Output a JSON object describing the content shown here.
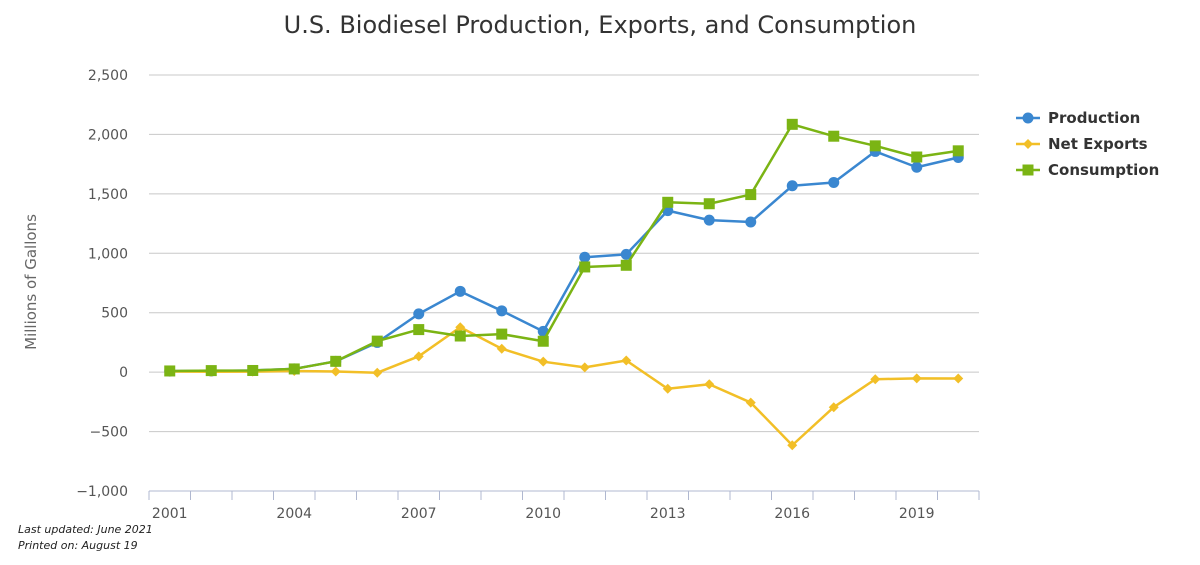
{
  "chart_data": {
    "type": "line",
    "title": "U.S. Biodiesel Production, Exports, and Consumption",
    "ylabel": "Millions of Gallons",
    "xlabel": "",
    "x": [
      2001,
      2002,
      2003,
      2004,
      2005,
      2006,
      2007,
      2008,
      2009,
      2010,
      2011,
      2012,
      2013,
      2014,
      2015,
      2016,
      2017,
      2018,
      2019,
      2020
    ],
    "x_ticks": [
      "2001",
      "2004",
      "2007",
      "2010",
      "2013",
      "2016",
      "2019"
    ],
    "ylim": [
      -1000,
      2500
    ],
    "y_ticks": [
      "−1,000",
      "−500",
      "0",
      "500",
      "1,000",
      "1,500",
      "2,000",
      "2,500"
    ],
    "y_tick_values": [
      -1000,
      -500,
      0,
      500,
      1000,
      1500,
      2000,
      2500
    ],
    "grid": true,
    "legend_position": "right",
    "series": [
      {
        "name": "Production",
        "color": "#3a87d0",
        "marker": "circle",
        "values": [
          9,
          10,
          14,
          28,
          91,
          250,
          490,
          680,
          516,
          343,
          967,
          991,
          1359,
          1279,
          1263,
          1568,
          1596,
          1857,
          1724,
          1806
        ]
      },
      {
        "name": "Net Exports",
        "color": "#f2bf27",
        "marker": "diamond",
        "values": [
          5,
          3,
          4,
          10,
          5,
          -5,
          133,
          378,
          197,
          88,
          40,
          98,
          -140,
          -102,
          -256,
          -615,
          -295,
          -60,
          -52,
          -53
        ]
      },
      {
        "name": "Consumption",
        "color": "#7bb414",
        "marker": "square",
        "values": [
          10,
          13,
          14,
          27,
          91,
          261,
          358,
          304,
          320,
          260,
          885,
          899,
          1429,
          1417,
          1494,
          2085,
          1985,
          1904,
          1810,
          1862
        ]
      }
    ]
  },
  "footer": {
    "last_updated": "Last updated: June 2021",
    "printed_on": "Printed on: August 19"
  }
}
